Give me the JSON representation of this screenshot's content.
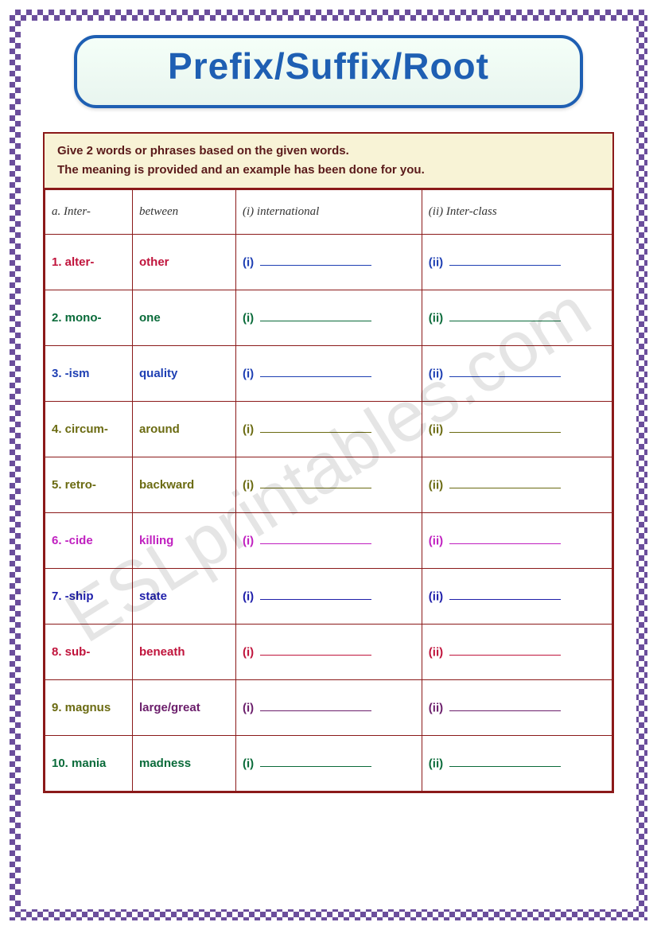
{
  "title": "Prefix/Suffix/Root",
  "instructions_line1": "Give 2 words or phrases based on the given words.",
  "instructions_line2": "The meaning is provided and an example has been done for you.",
  "watermark": "ESLprintables.com",
  "example": {
    "label": "a.  Inter-",
    "meaning": "between",
    "ans1": "(i)   international",
    "ans2": "(ii) Inter-class"
  },
  "blank_i": "(i)",
  "blank_ii": "(ii)",
  "rows": [
    {
      "num": "1. alter-",
      "meaning": "other",
      "num_color": "#c0143c",
      "meaning_color": "#c0143c",
      "ans_color": "#1e3fb3"
    },
    {
      "num": "2. mono-",
      "meaning": "one",
      "num_color": "#0a6b3a",
      "meaning_color": "#0a6b3a",
      "ans_color": "#0a6b3a"
    },
    {
      "num": "3. -ism",
      "meaning": "quality",
      "num_color": "#1e3fb3",
      "meaning_color": "#1e3fb3",
      "ans_color": "#1e3fb3"
    },
    {
      "num": "4. circum-",
      "meaning": "around",
      "num_color": "#6b6b12",
      "meaning_color": "#6b6b12",
      "ans_color": "#6b6b12"
    },
    {
      "num": "5. retro-",
      "meaning": "backward",
      "num_color": "#6b6b12",
      "meaning_color": "#6b6b12",
      "ans_color": "#6b6b12"
    },
    {
      "num": "6. -cide",
      "meaning": "killing",
      "num_color": "#c020c0",
      "meaning_color": "#c020c0",
      "ans_color": "#c020c0"
    },
    {
      "num": "7. -ship",
      "meaning": "state",
      "num_color": "#1e1eaa",
      "meaning_color": "#1e1eaa",
      "ans_color": "#1e1eaa"
    },
    {
      "num": "8. sub-",
      "meaning": "beneath",
      "num_color": "#c0143c",
      "meaning_color": "#c0143c",
      "ans_color": "#c0143c"
    },
    {
      "num": "9. magnus",
      "meaning": "large/great",
      "num_color": "#6b6b12",
      "meaning_color": "#6b1e6b",
      "ans_color": "#6b1e6b"
    },
    {
      "num": "10. mania",
      "meaning": "madness",
      "num_color": "#0a6b3a",
      "meaning_color": "#0a6b3a",
      "ans_color": "#0a6b3a"
    }
  ],
  "columns": {
    "num_width": 110,
    "meaning_width": 130
  }
}
